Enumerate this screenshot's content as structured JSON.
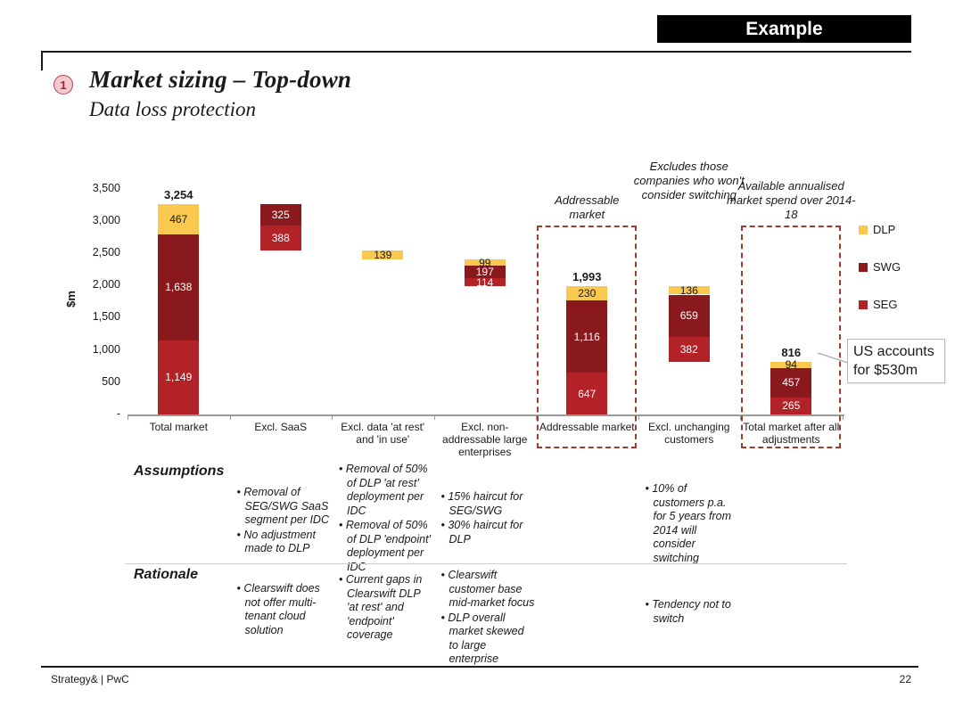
{
  "banner": {
    "label": "Example"
  },
  "header": {
    "number": "1",
    "title": "Market sizing – Top-down",
    "subtitle": "Data loss protection"
  },
  "chart_data": {
    "type": "bar",
    "variant": "stacked-waterfall",
    "ylabel": "$m",
    "ylim": [
      0,
      3500
    ],
    "yticks": [
      {
        "label": "3,500",
        "value": 3500
      },
      {
        "label": "3,000",
        "value": 3000
      },
      {
        "label": "2,500",
        "value": 2500
      },
      {
        "label": "2,000",
        "value": 2000
      },
      {
        "label": "1,500",
        "value": 1500
      },
      {
        "label": "1,000",
        "value": 1000
      },
      {
        "label": "500",
        "value": 500
      },
      {
        "label": "-",
        "value": 0
      }
    ],
    "colors": {
      "DLP": "#FAC74F",
      "SWG": "#8A191D",
      "SEG": "#B22227"
    },
    "legend": [
      "DLP",
      "SWG",
      "SEG"
    ],
    "bars": [
      {
        "label": "Total market",
        "base": 0,
        "total_label": "3,254",
        "segments": [
          {
            "key": "SEG",
            "value": 1149,
            "label": "1,149"
          },
          {
            "key": "SWG",
            "value": 1638,
            "label": "1,638"
          },
          {
            "key": "DLP",
            "value": 467,
            "label": "467"
          }
        ]
      },
      {
        "label": "Excl. SaaS",
        "base": 2541,
        "segments": [
          {
            "key": "SEG",
            "value": 388,
            "label": "388"
          },
          {
            "key": "SWG",
            "value": 325,
            "label": "325"
          }
        ]
      },
      {
        "label": "Excl. data 'at rest' and 'in use'",
        "base": 2402,
        "segments": [
          {
            "key": "DLP",
            "value": 139,
            "label": "139"
          }
        ]
      },
      {
        "label": "Excl. non-addressable large enterprises",
        "base": 1992,
        "segments": [
          {
            "key": "SEG",
            "value": 114,
            "label": "114"
          },
          {
            "key": "SWG",
            "value": 197,
            "label": "197"
          },
          {
            "key": "DLP",
            "value": 99,
            "label": "99"
          }
        ]
      },
      {
        "label": "Addressable market",
        "base": 0,
        "total_label": "1,993",
        "dashed_box": true,
        "segments": [
          {
            "key": "SEG",
            "value": 647,
            "label": "647"
          },
          {
            "key": "SWG",
            "value": 1116,
            "label": "1,116"
          },
          {
            "key": "DLP",
            "value": 230,
            "label": "230"
          }
        ]
      },
      {
        "label": "Excl. unchanging customers",
        "base": 816,
        "segments": [
          {
            "key": "SEG",
            "value": 382,
            "label": "382"
          },
          {
            "key": "SWG",
            "value": 659,
            "label": "659"
          },
          {
            "key": "DLP",
            "value": 136,
            "label": "136"
          }
        ]
      },
      {
        "label": "Total market after all adjustments",
        "base": 0,
        "total_label": "816",
        "dashed_box": true,
        "segments": [
          {
            "key": "SEG",
            "value": 265,
            "label": "265"
          },
          {
            "key": "SWG",
            "value": 457,
            "label": "457"
          },
          {
            "key": "DLP",
            "value": 94,
            "label": "94"
          }
        ]
      }
    ],
    "annotations": [
      {
        "text": "Addressable market",
        "bar_index": 4
      },
      {
        "text": "Excludes those companies who won't consider switching",
        "bar_index": 5
      },
      {
        "text": "Available annualised market spend over 2014-18",
        "bar_index": 6
      }
    ],
    "callout": {
      "text": "US accounts for $530m"
    }
  },
  "assumptions": {
    "label": "Assumptions",
    "columns": [
      {
        "bar_index": 1,
        "bullets": [
          "Removal of SEG/SWG SaaS segment per IDC",
          "No adjustment made to DLP"
        ]
      },
      {
        "bar_index": 2,
        "bullets": [
          "Removal of 50% of DLP 'at rest' deployment per IDC",
          "Removal of 50% of DLP 'endpoint' deployment per IDC"
        ]
      },
      {
        "bar_index": 3,
        "bullets": [
          "15% haircut for SEG/SWG",
          "30% haircut for DLP"
        ]
      },
      {
        "bar_index": 5,
        "bullets": [
          "10% of customers p.a. for 5 years from 2014 will consider switching"
        ]
      }
    ]
  },
  "rationale": {
    "label": "Rationale",
    "columns": [
      {
        "bar_index": 1,
        "bullets": [
          "Clearswift does not offer multi-tenant cloud solution"
        ]
      },
      {
        "bar_index": 2,
        "bullets": [
          "Current gaps in Clearswift DLP 'at rest' and 'endpoint' coverage"
        ]
      },
      {
        "bar_index": 3,
        "bullets": [
          "Clearswift customer base mid-market focus",
          "DLP overall market skewed to large enterprise"
        ]
      },
      {
        "bar_index": 5,
        "bullets": [
          "Tendency not to switch"
        ]
      }
    ]
  },
  "footer": {
    "left": "Strategy& | PwC",
    "page": "22"
  }
}
